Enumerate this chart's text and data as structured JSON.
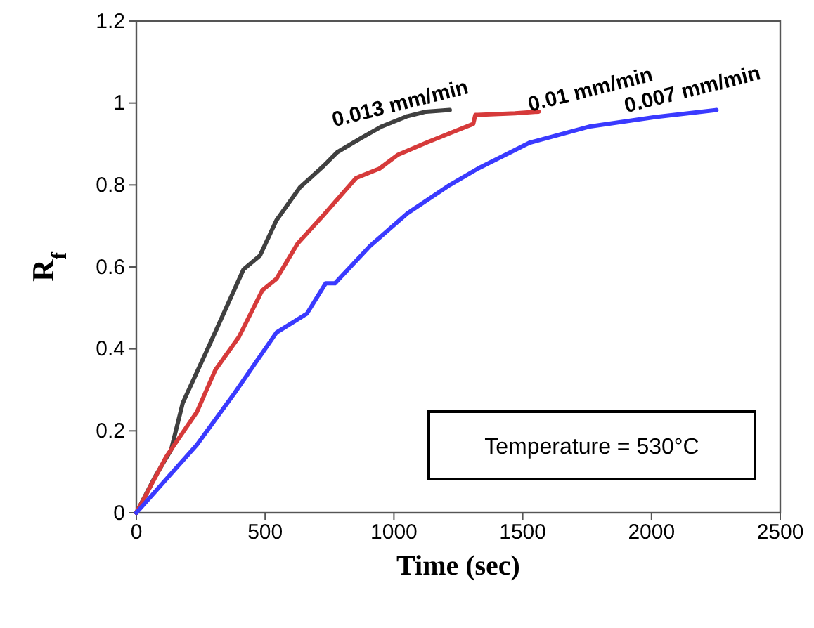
{
  "chart_data": {
    "type": "line",
    "xlabel": "Time (sec)",
    "ylabel": "R$_{f}$",
    "xlim": [
      0,
      2500
    ],
    "xticks": [
      0,
      500,
      1000,
      1500,
      2000,
      2500
    ],
    "ylim": [
      0,
      1.2
    ],
    "yticks": [
      0,
      0.2,
      0.4,
      0.6,
      0.8,
      1,
      1.2
    ],
    "grid": false,
    "marker": "none",
    "line_style": "solid",
    "annotations": [
      "Temperature = 530°C"
    ],
    "series": [
      {
        "name": "0.013 mm/min",
        "color": "#404040",
        "x": [
          0,
          71,
          135,
          180,
          289,
          416,
          480,
          544,
          635,
          726,
          780,
          871,
          953,
          1053,
          1125,
          1217
        ],
        "values": [
          0,
          0.086,
          0.154,
          0.268,
          0.417,
          0.594,
          0.628,
          0.714,
          0.794,
          0.846,
          0.88,
          0.914,
          0.943,
          0.968,
          0.979,
          0.983
        ]
      },
      {
        "name": "0.01 mm/min",
        "color": "#d63a3a",
        "x": [
          0,
          116,
          235,
          307,
          398,
          489,
          544,
          626,
          726,
          853,
          944,
          1016,
          1125,
          1235,
          1308,
          1316,
          1326,
          1471,
          1562
        ],
        "values": [
          0,
          0.137,
          0.246,
          0.349,
          0.429,
          0.543,
          0.571,
          0.657,
          0.726,
          0.817,
          0.84,
          0.874,
          0.903,
          0.931,
          0.949,
          0.971,
          0.971,
          0.975,
          0.979
        ]
      },
      {
        "name": "0.007 mm/min",
        "color": "#3a3aff",
        "x": [
          0,
          235,
          380,
          544,
          662,
          735,
          771,
          907,
          1053,
          1217,
          1326,
          1526,
          1762,
          2017,
          2253
        ],
        "values": [
          0,
          0.166,
          0.291,
          0.44,
          0.486,
          0.56,
          0.56,
          0.651,
          0.731,
          0.8,
          0.84,
          0.903,
          0.943,
          0.966,
          0.983
        ]
      }
    ]
  }
}
